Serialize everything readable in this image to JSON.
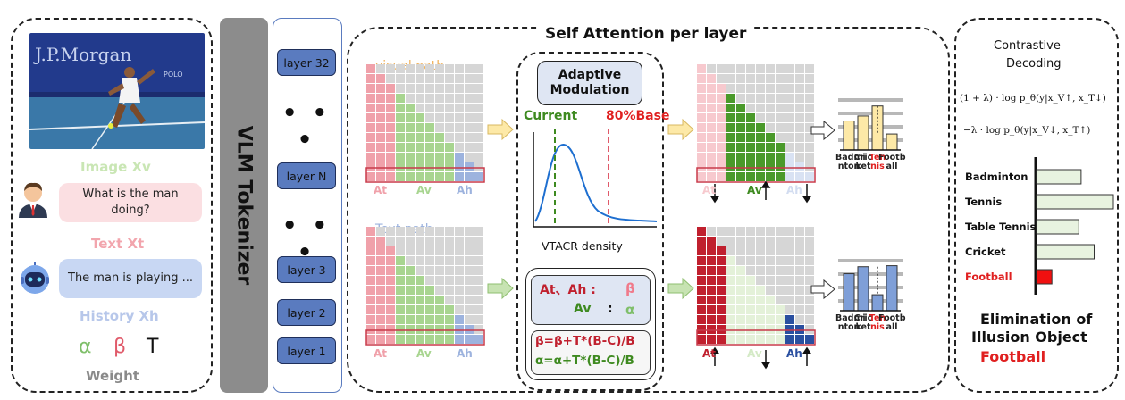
{
  "left": {
    "image_overlay_text": "J.P.Morgan",
    "image_overlay_text2": "POLO",
    "image_label": "Image Xv",
    "question": "What is the man doing?",
    "text_label": "Text Xt",
    "answer": "The man is playing ...",
    "history_label": "History Xh",
    "weight_alpha": "α",
    "weight_beta": "β",
    "weight_t": "T",
    "weight_label": "Weight"
  },
  "tokenizer": {
    "label": "VLM Tokenizer"
  },
  "layers": {
    "items": [
      "layer 32",
      "layer N",
      "layer 3",
      "layer 2",
      "layer 1"
    ],
    "dots": "• • •"
  },
  "attention": {
    "title": "Self Attention per layer",
    "visual_path": "visual path",
    "text_path": "Text path",
    "at": "At",
    "av": "Av",
    "ah": "Ah",
    "modulation_title": "Adaptive Modulation",
    "current_label": "Current",
    "base_label": "80%Base",
    "density_label": "VTACR density",
    "rule1_left": "At、Ah  :",
    "rule1_right": "β",
    "rule2_left": "Av",
    "rule2_sep": ":",
    "rule2_right": "α",
    "formula_beta": "β=β+T*(B-C)/B",
    "formula_alpha": "α=α+T*(B-C)/B",
    "bar_ticks": [
      {
        "l1": "Badmi",
        "l2": "nton",
        "red": false
      },
      {
        "l1": "Cric",
        "l2": "ket",
        "red": false
      },
      {
        "l1": "Ten",
        "l2": "nis",
        "red": true
      },
      {
        "l1": "Footb",
        "l2": "all",
        "red": false
      }
    ],
    "bar_top_values": [
      0.58,
      0.68,
      0.88,
      0.32
    ],
    "bar_bottom_values": [
      0.74,
      0.88,
      0.32,
      0.9
    ]
  },
  "decoding": {
    "title_line1": "Contrastive",
    "title_line2": "Decoding",
    "formula1": "(1 + λ) · log p_θ(y|x_V↑, x_T↓)",
    "formula2": "−λ · log p_θ(y|x_V↓, x_T↑)",
    "categories": [
      "Badminton",
      "Tennis",
      "Table Tennis",
      "Cricket",
      "Football"
    ],
    "values": [
      0.58,
      1.0,
      0.55,
      0.75,
      0.2
    ],
    "elim_line1": "Elimination of",
    "elim_line2": "Illusion Object",
    "elim_line3": "Football"
  },
  "colors": {
    "red_text": "#e02020",
    "at_pink": "#f0a1aa",
    "av_green": "#a8d590",
    "ah_blue": "#9db3de",
    "bar_yellow": "#fde9a7",
    "bar_blue": "#7f9fd8",
    "layer_blue": "#5a7bbf"
  }
}
